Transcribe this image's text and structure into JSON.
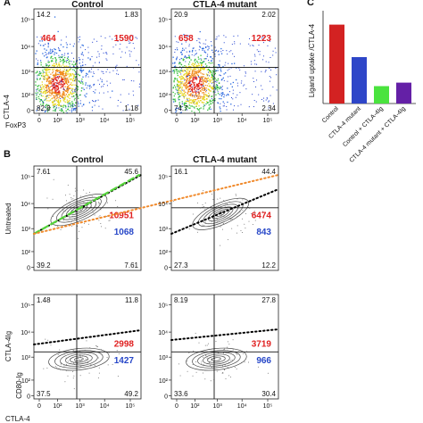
{
  "chart_data": [
    {
      "panel": "A",
      "type": "scatter",
      "title": "Control",
      "xlabel": "FoxP3",
      "ylabel": "CTLA-4",
      "x_ticks": [
        "0",
        "10²",
        "10³",
        "10⁴",
        "10⁵"
      ],
      "y_ticks": [
        "0",
        "10²",
        "10³",
        "10⁴",
        "10⁵"
      ],
      "quadrant_percents": {
        "top_left": "14.2",
        "top_right": "1.83",
        "bottom_left": "82.8",
        "bottom_right": "1.18"
      },
      "mfi": {
        "left": "464",
        "right": "1590"
      }
    },
    {
      "panel": "A",
      "type": "scatter",
      "title": "CTLA-4 mutant",
      "quadrant_percents": {
        "top_left": "20.9",
        "top_right": "2.02",
        "bottom_left": "74.7",
        "bottom_right": "2.34"
      },
      "mfi": {
        "left": "658",
        "right": "1223"
      }
    },
    {
      "panel": "C",
      "type": "bar",
      "ylabel": "Ligand uptake /CTLA-4",
      "categories": [
        "Control",
        "CTLA-4 mutant",
        "Control + CTLA-4Ig",
        "CTLA-4 mutant + CTLA-4Ig"
      ],
      "values": [
        0.68,
        0.4,
        0.15,
        0.18
      ],
      "colors": [
        "#d32222",
        "#2e46c8",
        "#4ae33e",
        "#6420a6"
      ],
      "ylim": [
        0,
        0.8
      ]
    },
    {
      "panel": "B",
      "type": "scatter",
      "title": "Control",
      "ylabel": "Untreated",
      "y_ticks": [
        "0",
        "10²",
        "10³",
        "10⁴",
        "10⁵"
      ],
      "quadrant_percents": {
        "top_left": "7.61",
        "top_right": "45.6",
        "bottom_left": "39.2",
        "bottom_right": "7.61"
      },
      "values": {
        "upper": "10951",
        "lower": "1068"
      }
    },
    {
      "panel": "B",
      "type": "scatter",
      "title": "CTLA-4 mutant",
      "quadrant_percents": {
        "top_left": "16.1",
        "top_right": "44.4",
        "bottom_left": "27.3",
        "bottom_right": "12.2"
      },
      "values": {
        "upper": "6474",
        "lower": "843"
      }
    },
    {
      "panel": "B",
      "type": "scatter",
      "ylabel": "CD80-Ig",
      "ylabel2": "CTLA-4Ig",
      "xlabel": "CTLA-4",
      "x_ticks": [
        "0",
        "10²",
        "10³",
        "10⁴",
        "10⁵"
      ],
      "y_ticks": [
        "0",
        "10²",
        "10³",
        "10⁴",
        "10⁵"
      ],
      "quadrant_percents": {
        "top_left": "1.48",
        "top_right": "11.8",
        "bottom_left": "37.5",
        "bottom_right": "49.2"
      },
      "values": {
        "upper": "2998",
        "lower": "1427"
      }
    },
    {
      "panel": "B",
      "type": "scatter",
      "x_ticks": [
        "0",
        "10²",
        "10³",
        "10⁴",
        "10⁵"
      ],
      "quadrant_percents": {
        "top_left": "8.19",
        "top_right": "27.8",
        "bottom_left": "33.6",
        "bottom_right": "30.4"
      },
      "values": {
        "upper": "3719",
        "lower": "966"
      }
    }
  ],
  "panel_letters": [
    "A",
    "B",
    "C"
  ],
  "colors": {
    "red_value": "#e02020",
    "blue_value": "#2747c8",
    "dashed_green": "#55d43a",
    "dashed_orange": "#f08a2c",
    "dashed_black": "#000000"
  }
}
